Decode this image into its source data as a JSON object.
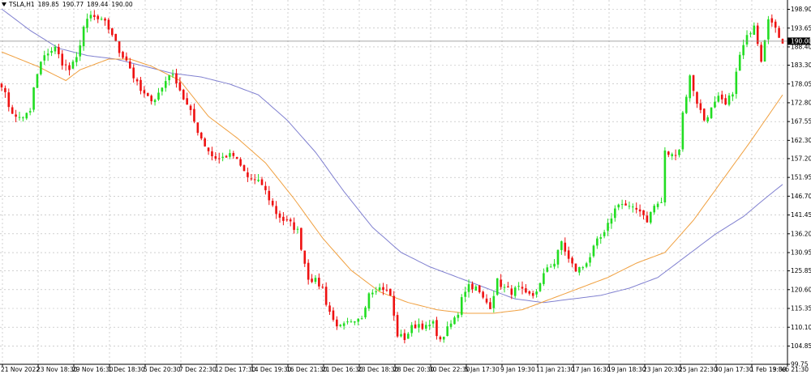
{
  "header": {
    "symbol": "TSLA,H1",
    "open": "189.85",
    "high": "190.77",
    "low": "189.44",
    "close": "190.00"
  },
  "price_axis": {
    "labels": [
      "198.90",
      "193.65",
      "188.40",
      "183.30",
      "178.05",
      "172.80",
      "167.55",
      "162.30",
      "157.20",
      "151.95",
      "146.70",
      "141.45",
      "136.20",
      "130.95",
      "125.85",
      "120.60",
      "115.35",
      "110.10",
      "104.85",
      "99.75"
    ],
    "current_price_label": "190.00"
  },
  "time_axis": {
    "labels": [
      "21 Nov 2022",
      "23 Nov 18:30",
      "29 Nov 16:30",
      "1 Dec 18:30",
      "5 Dec 20:30",
      "7 Dec 22:30",
      "12 Dec 17:30",
      "14 Dec 19:30",
      "16 Dec 21:30",
      "21 Dec 16:30",
      "23 Dec 18:30",
      "28 Dec 20:30",
      "30 Dec 22:30",
      "5 Jan 17:30",
      "9 Jan 19:30",
      "11 Jan 21:30",
      "17 Jan 16:30",
      "19 Jan 18:30",
      "23 Jan 20:30",
      "25 Jan 22:30",
      "30 Jan 17:30",
      "1 Feb 19:30",
      "3 Feb 21:30"
    ]
  },
  "colors": {
    "background": "#ffffff",
    "grid": "#b4b4b4",
    "bull_candle": "#22dd22",
    "bear_candle": "#ee1111",
    "ma_fast": "#f0a040",
    "ma_slow": "#8080d0",
    "current_price_line": "#888888"
  },
  "chart_data": {
    "type": "candlestick",
    "title": "TSLA,H1",
    "x_range": [
      "21 Nov 2022",
      "3 Feb 21:30"
    ],
    "ylim": [
      99.75,
      201.5
    ],
    "grid": true,
    "current_price": 190.0,
    "close_path": [
      [
        0,
        178
      ],
      [
        2,
        172
      ],
      [
        4,
        168.5
      ],
      [
        6,
        169
      ],
      [
        8,
        170
      ],
      [
        9,
        177
      ],
      [
        11,
        184
      ],
      [
        13,
        187
      ],
      [
        15,
        188
      ],
      [
        17,
        184
      ],
      [
        19,
        182
      ],
      [
        21,
        185
      ],
      [
        23,
        194
      ],
      [
        25,
        197
      ],
      [
        27,
        196
      ],
      [
        29,
        195
      ],
      [
        31,
        192
      ],
      [
        33,
        187
      ],
      [
        35,
        185
      ],
      [
        37,
        180
      ],
      [
        39,
        176
      ],
      [
        41,
        174
      ],
      [
        43,
        174
      ],
      [
        45,
        177
      ],
      [
        47,
        181
      ],
      [
        49,
        179
      ],
      [
        51,
        174
      ],
      [
        53,
        170
      ],
      [
        55,
        165
      ],
      [
        57,
        161
      ],
      [
        59,
        158
      ],
      [
        61,
        157
      ],
      [
        63,
        158
      ],
      [
        65,
        158
      ],
      [
        67,
        155
      ],
      [
        69,
        152
      ],
      [
        71,
        151
      ],
      [
        73,
        150
      ],
      [
        75,
        146
      ],
      [
        77,
        142
      ],
      [
        79,
        140
      ],
      [
        81,
        139
      ],
      [
        83,
        137
      ],
      [
        85,
        128
      ],
      [
        86,
        124
      ],
      [
        88,
        123
      ],
      [
        90,
        121
      ],
      [
        91,
        117
      ],
      [
        93,
        112
      ],
      [
        95,
        110
      ],
      [
        97,
        111
      ],
      [
        99,
        111
      ],
      [
        101,
        113
      ],
      [
        103,
        120
      ],
      [
        105,
        121
      ],
      [
        107,
        121
      ],
      [
        109,
        119
      ],
      [
        110,
        113
      ],
      [
        111,
        108
      ],
      [
        113,
        107
      ],
      [
        115,
        110
      ],
      [
        117,
        111
      ],
      [
        119,
        110
      ],
      [
        121,
        111
      ],
      [
        123,
        106
      ],
      [
        124,
        108
      ],
      [
        126,
        111
      ],
      [
        128,
        114
      ],
      [
        129,
        119
      ],
      [
        131,
        122
      ],
      [
        133,
        121
      ],
      [
        135,
        118
      ],
      [
        137,
        116
      ],
      [
        139,
        123
      ],
      [
        141,
        121
      ],
      [
        143,
        120
      ],
      [
        145,
        121
      ],
      [
        147,
        119
      ],
      [
        149,
        119
      ],
      [
        151,
        122
      ],
      [
        153,
        127
      ],
      [
        155,
        128
      ],
      [
        157,
        134
      ],
      [
        159,
        129
      ],
      [
        161,
        126
      ],
      [
        163,
        127
      ],
      [
        165,
        130
      ],
      [
        167,
        134
      ],
      [
        169,
        136
      ],
      [
        171,
        141
      ],
      [
        173,
        145
      ],
      [
        175,
        144
      ],
      [
        177,
        143
      ],
      [
        179,
        143
      ],
      [
        181,
        140
      ],
      [
        183,
        144
      ],
      [
        185,
        145
      ],
      [
        186,
        159
      ],
      [
        188,
        158
      ],
      [
        190,
        160
      ],
      [
        191,
        170
      ],
      [
        193,
        180
      ],
      [
        195,
        173
      ],
      [
        197,
        168
      ],
      [
        199,
        171
      ],
      [
        201,
        174
      ],
      [
        203,
        172
      ],
      [
        205,
        176
      ],
      [
        207,
        186
      ],
      [
        209,
        191
      ],
      [
        211,
        195
      ],
      [
        213,
        185
      ],
      [
        215,
        197
      ],
      [
        217,
        193
      ],
      [
        219,
        190
      ]
    ],
    "series": [
      {
        "type": "line",
        "values": [
          [
            0,
            187
          ],
          [
            10,
            183
          ],
          [
            18,
            179
          ],
          [
            22,
            182
          ],
          [
            30,
            185
          ],
          [
            36,
            185
          ],
          [
            42,
            183
          ],
          [
            50,
            179
          ],
          [
            58,
            169
          ],
          [
            66,
            163
          ],
          [
            74,
            156
          ],
          [
            82,
            146
          ],
          [
            90,
            135
          ],
          [
            98,
            126
          ],
          [
            106,
            120
          ],
          [
            114,
            117
          ],
          [
            122,
            115
          ],
          [
            130,
            114
          ],
          [
            138,
            114
          ],
          [
            146,
            115
          ],
          [
            154,
            118
          ],
          [
            162,
            121
          ],
          [
            170,
            124
          ],
          [
            178,
            128
          ],
          [
            186,
            131
          ],
          [
            194,
            140
          ],
          [
            202,
            151
          ],
          [
            210,
            162
          ],
          [
            219,
            175
          ]
        ]
      },
      {
        "type": "line",
        "values": [
          [
            0,
            199
          ],
          [
            8,
            193
          ],
          [
            16,
            188
          ],
          [
            24,
            186
          ],
          [
            32,
            185
          ],
          [
            40,
            183
          ],
          [
            48,
            181
          ],
          [
            56,
            180
          ],
          [
            64,
            178
          ],
          [
            72,
            175
          ],
          [
            80,
            168
          ],
          [
            88,
            159
          ],
          [
            96,
            148
          ],
          [
            104,
            138
          ],
          [
            112,
            131
          ],
          [
            120,
            127
          ],
          [
            128,
            124
          ],
          [
            136,
            121
          ],
          [
            144,
            118
          ],
          [
            152,
            117
          ],
          [
            160,
            118
          ],
          [
            168,
            119
          ],
          [
            176,
            121
          ],
          [
            184,
            124
          ],
          [
            192,
            130
          ],
          [
            200,
            136
          ],
          [
            208,
            141
          ],
          [
            214,
            146
          ],
          [
            219,
            150
          ]
        ]
      }
    ]
  }
}
